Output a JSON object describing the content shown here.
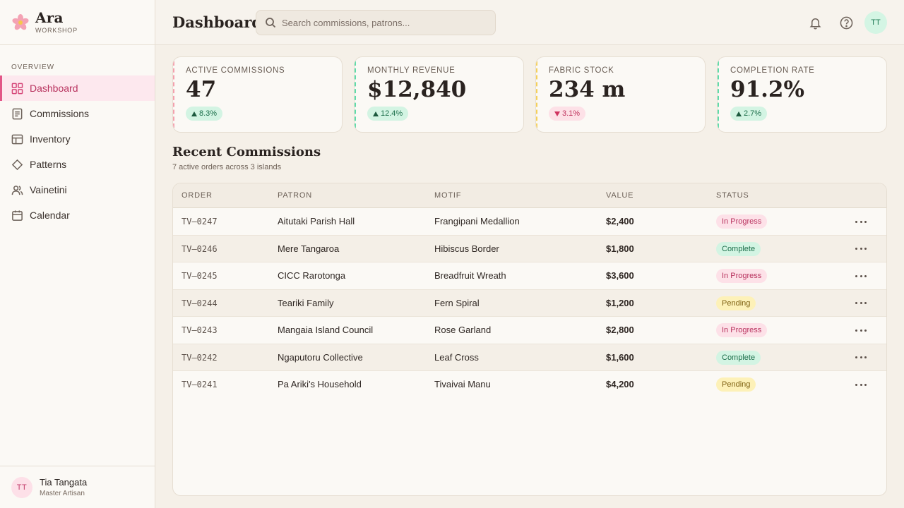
{
  "brand": {
    "name": "Ara",
    "subtitle": "WORKSHOP"
  },
  "sidebar": {
    "section_label": "OVERVIEW",
    "items": [
      {
        "label": "Dashboard",
        "icon": "grid-icon",
        "active": true
      },
      {
        "label": "Commissions",
        "icon": "document-icon",
        "active": false
      },
      {
        "label": "Inventory",
        "icon": "layout-icon",
        "active": false
      },
      {
        "label": "Patterns",
        "icon": "diamond-icon",
        "active": false
      },
      {
        "label": "Vainetini",
        "icon": "people-icon",
        "active": false
      },
      {
        "label": "Calendar",
        "icon": "calendar-icon",
        "active": false
      }
    ],
    "user": {
      "initials": "TT",
      "name": "Tia Tangata",
      "role": "Master Artisan"
    }
  },
  "header": {
    "title": "Dashboard",
    "search_placeholder": "Search commissions, patrons...",
    "avatar_initials": "TT"
  },
  "stats": [
    {
      "label": "ACTIVE COMMISSIONS",
      "value": "47",
      "delta": "8.3%",
      "direction": "up",
      "accent": "#f3a0ad"
    },
    {
      "label": "MONTHLY REVENUE",
      "value": "$12,840",
      "delta": "12.4%",
      "direction": "up",
      "accent": "#5fdcaa"
    },
    {
      "label": "FABRIC STOCK",
      "value": "234 m",
      "delta": "3.1%",
      "direction": "down",
      "accent": "#f5d05a"
    },
    {
      "label": "COMPLETION RATE",
      "value": "91.2%",
      "delta": "2.7%",
      "direction": "up",
      "accent": "#5fdcaa"
    }
  ],
  "commissions": {
    "title": "Recent Commissions",
    "subtitle": "7 active orders across 3 islands",
    "columns": [
      "ORDER",
      "PATRON",
      "MOTIF",
      "VALUE",
      "STATUS"
    ],
    "rows": [
      {
        "order": "TV–0247",
        "patron": "Aitutaki Parish Hall",
        "motif": "Frangipani Medallion",
        "value": "$2,400",
        "status": "In Progress"
      },
      {
        "order": "TV–0246",
        "patron": "Mere Tangaroa",
        "motif": "Hibiscus Border",
        "value": "$1,800",
        "status": "Complete"
      },
      {
        "order": "TV–0245",
        "patron": "CICC Rarotonga",
        "motif": "Breadfruit Wreath",
        "value": "$3,600",
        "status": "In Progress"
      },
      {
        "order": "TV–0244",
        "patron": "Teariki Family",
        "motif": "Fern Spiral",
        "value": "$1,200",
        "status": "Pending"
      },
      {
        "order": "TV–0243",
        "patron": "Mangaia Island Council",
        "motif": "Rose Garland",
        "value": "$2,800",
        "status": "In Progress"
      },
      {
        "order": "TV–0242",
        "patron": "Ngaputoru Collective",
        "motif": "Leaf Cross",
        "value": "$1,600",
        "status": "Complete"
      },
      {
        "order": "TV–0241",
        "patron": "Pa Ariki's Household",
        "motif": "Tivaivai Manu",
        "value": "$4,200",
        "status": "Pending"
      }
    ]
  }
}
